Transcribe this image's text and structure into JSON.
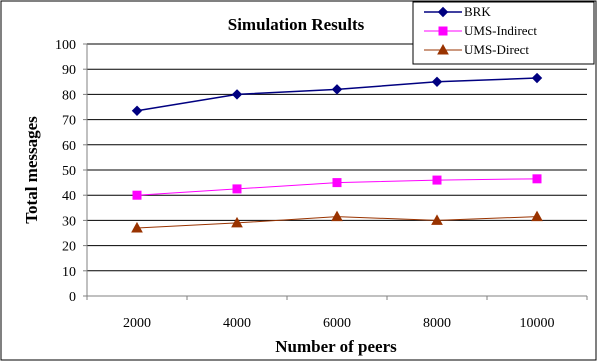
{
  "chart_data": {
    "type": "line",
    "title": "Simulation Results",
    "xlabel": "Number of peers",
    "ylabel": "Total messages",
    "x": [
      2000,
      4000,
      6000,
      8000,
      10000
    ],
    "x_tick_labels": [
      "2000",
      "4000",
      "6000",
      "8000",
      "10000"
    ],
    "ylim": [
      0,
      100
    ],
    "y_ticks": [
      0,
      10,
      20,
      30,
      40,
      50,
      60,
      70,
      80,
      90,
      100
    ],
    "y_tick_labels": [
      "0",
      "10",
      "20",
      "30",
      "40",
      "50",
      "60",
      "70",
      "80",
      "90",
      "100"
    ],
    "grid": "horizontal",
    "legend_position": "top-right",
    "series": [
      {
        "name": "BRK",
        "values": [
          73.5,
          80,
          82,
          85,
          86.5
        ],
        "color": "#000080",
        "marker": "diamond"
      },
      {
        "name": "UMS-Indirect",
        "values": [
          40,
          42.5,
          45,
          46,
          46.5
        ],
        "color": "#FF00FF",
        "marker": "square"
      },
      {
        "name": "UMS-Direct",
        "values": [
          27,
          29,
          31.5,
          30,
          31.5
        ],
        "color": "#993300",
        "marker": "triangle"
      }
    ]
  }
}
